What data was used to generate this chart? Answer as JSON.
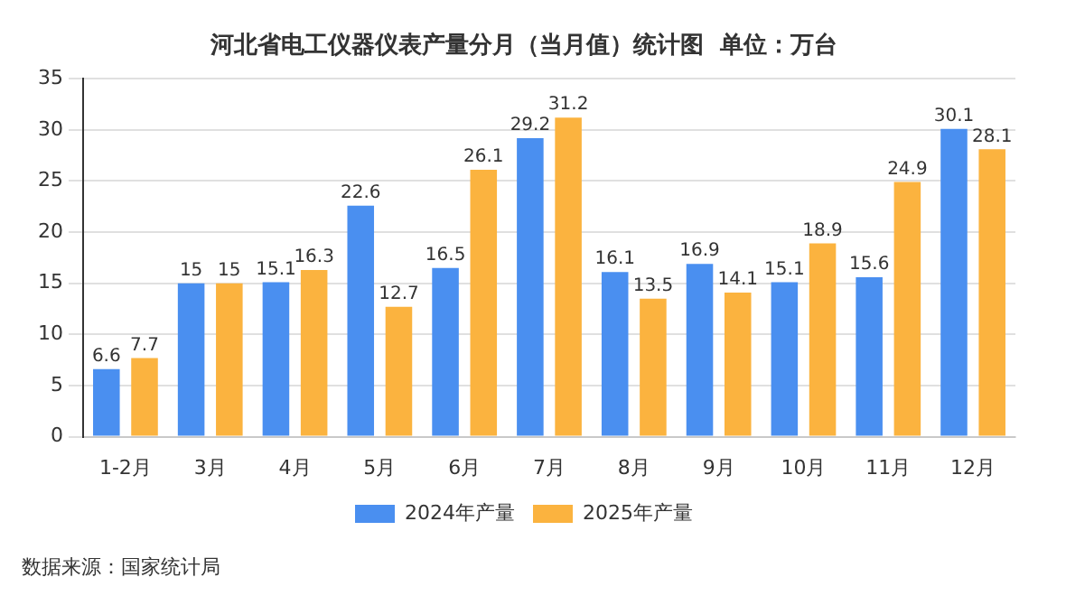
{
  "chart_data": {
    "type": "bar",
    "title": "河北省电工仪器仪表产量分月（当月值）统计图  单位：万台",
    "categories": [
      "1-2月",
      "3月",
      "4月",
      "5月",
      "6月",
      "7月",
      "8月",
      "9月",
      "10月",
      "11月",
      "12月"
    ],
    "series": [
      {
        "name": "2024年产量",
        "color": "#4a8ff0",
        "values": [
          6.6,
          15,
          15.1,
          22.6,
          16.5,
          29.2,
          16.1,
          16.9,
          15.1,
          15.6,
          30.1
        ]
      },
      {
        "name": "2025年产量",
        "color": "#fbb33f",
        "values": [
          7.7,
          15,
          16.3,
          12.7,
          26.1,
          31.2,
          13.5,
          14.1,
          18.9,
          24.9,
          28.1
        ]
      }
    ],
    "ylim": [
      0,
      35
    ],
    "yticks": [
      0,
      5,
      10,
      15,
      20,
      25,
      30,
      35
    ],
    "grid": "y",
    "legend": "bottom",
    "data_labels": true,
    "annotations": [
      "数据来源：国家统计局"
    ]
  }
}
